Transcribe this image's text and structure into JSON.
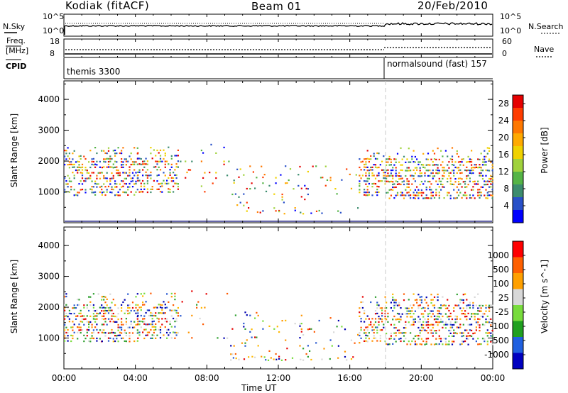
{
  "header": {
    "station": "Kodiak (fitACF)",
    "beam": "Beam 01",
    "date": "20/Feb/2010"
  },
  "top_panels": {
    "nsky_label": "N.Sky",
    "nsearch_label": "N.Search",
    "nsky_ticks": [
      "10^5",
      "10^0"
    ],
    "nsearch_ticks": [
      "10^5",
      "10^0"
    ],
    "freq_label_line1": "Freq.",
    "freq_label_line2": "[MHz]",
    "freq_ticks": [
      "18",
      "8"
    ],
    "nave_label": "Nave",
    "nave_ticks": [
      "60",
      "0"
    ],
    "cpid_label": "CPID",
    "cpid_segments": [
      "themis 3300",
      "normalsound (fast) 157"
    ]
  },
  "colors": {
    "power": [
      "#0000ff",
      "#2850c8",
      "#3c8c6e",
      "#55b446",
      "#a0d23c",
      "#f0d200",
      "#ffaa00",
      "#ff7800",
      "#ff3c00",
      "#e60000"
    ],
    "velocity": [
      "#ff0000",
      "#ff6000",
      "#ffa000",
      "#d8d8d8",
      "#78dc3c",
      "#20a020",
      "#2060e0",
      "#0000c0"
    ],
    "velocity_low_to_high": [
      "#e60000",
      "#ff5a00",
      "#ff9600",
      "#ffb800",
      "#d8d8d8",
      "#78dc3c",
      "#30a030",
      "#2858d0",
      "#0000b0"
    ]
  },
  "chart_data": [
    {
      "type": "heatmap",
      "title": "",
      "xlabel": "",
      "ylabel": "Slant Range [km]",
      "x_ticks": [
        "00:00",
        "04:00",
        "08:00",
        "12:00",
        "16:00",
        "20:00",
        "00:00"
      ],
      "y_ticks": [
        "1000",
        "2000",
        "3000",
        "4000"
      ],
      "ylim": [
        0,
        4600
      ],
      "xlim_hours": [
        0,
        24
      ],
      "colorbar_label": "Power [dB]",
      "colorbar_ticks": [
        "4",
        "8",
        "12",
        "16",
        "20",
        "24",
        "28"
      ],
      "colorbar_range": [
        0,
        30
      ],
      "cpid_change_hour": 18.0,
      "scatter_clusters": [
        {
          "hours": [
            0.0,
            2.1
          ],
          "ranges_km": [
            900,
            2500
          ]
        },
        {
          "hours": [
            2.1,
            4.1
          ],
          "ranges_km": [
            900,
            2500
          ]
        },
        {
          "hours": [
            4.1,
            6.4
          ],
          "ranges_km": [
            1000,
            2500
          ]
        },
        {
          "hours": [
            6.4,
            9.3
          ],
          "ranges_km": [
            1000,
            2600
          ]
        },
        {
          "hours": [
            9.3,
            16.5
          ],
          "ranges_km": [
            300,
            1900
          ]
        },
        {
          "hours": [
            16.5,
            18.0
          ],
          "ranges_km": [
            900,
            2400
          ]
        },
        {
          "hours": [
            18.0,
            24.0
          ],
          "ranges_km": [
            800,
            2500
          ]
        }
      ]
    },
    {
      "type": "heatmap",
      "title": "",
      "xlabel": "Time UT",
      "ylabel": "Slant Range [km]",
      "x_ticks": [
        "00:00",
        "04:00",
        "08:00",
        "12:00",
        "16:00",
        "20:00",
        "00:00"
      ],
      "y_ticks": [
        "1000",
        "2000",
        "3000",
        "4000"
      ],
      "ylim": [
        0,
        4600
      ],
      "xlim_hours": [
        0,
        24
      ],
      "colorbar_label": "Velocity [m s^-1]",
      "colorbar_ticks": [
        "1000",
        "500",
        "100",
        "25",
        "-25",
        "-100",
        "-500",
        "-1000"
      ],
      "cpid_change_hour": 18.0,
      "scatter_clusters": [
        {
          "hours": [
            0.0,
            2.1
          ],
          "ranges_km": [
            900,
            2500
          ]
        },
        {
          "hours": [
            2.1,
            4.1
          ],
          "ranges_km": [
            900,
            2500
          ]
        },
        {
          "hours": [
            4.1,
            6.4
          ],
          "ranges_km": [
            1000,
            2500
          ]
        },
        {
          "hours": [
            6.4,
            9.3
          ],
          "ranges_km": [
            1000,
            2600
          ]
        },
        {
          "hours": [
            9.3,
            16.5
          ],
          "ranges_km": [
            300,
            1900
          ]
        },
        {
          "hours": [
            16.5,
            18.0
          ],
          "ranges_km": [
            900,
            2400
          ]
        },
        {
          "hours": [
            18.0,
            24.0
          ],
          "ranges_km": [
            800,
            2500
          ]
        }
      ]
    }
  ]
}
